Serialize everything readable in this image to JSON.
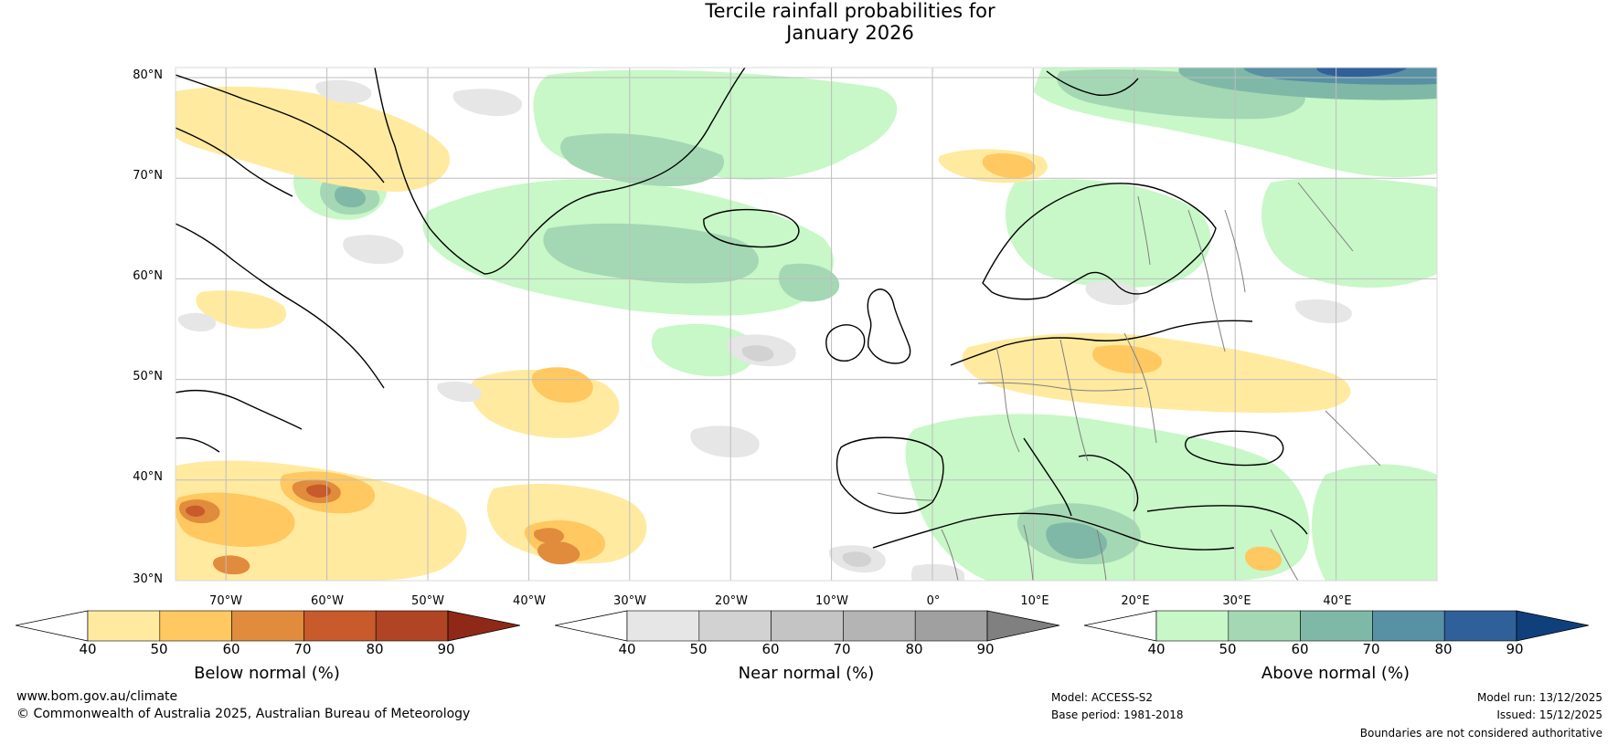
{
  "title": {
    "line1": "Tercile rainfall probabilities for",
    "line2": "January 2026"
  },
  "map": {
    "lat_labels": [
      "80°N",
      "70°N",
      "60°N",
      "50°N",
      "40°N",
      "30°N"
    ],
    "lon_labels": [
      "70°W",
      "60°W",
      "50°W",
      "40°W",
      "30°W",
      "20°W",
      "10°W",
      "0°",
      "10°E",
      "20°E",
      "30°E",
      "40°E"
    ],
    "extent": {
      "lon_min": -75,
      "lon_max": 50,
      "lat_min": 30,
      "lat_max": 81
    },
    "colors": {
      "land_outline": "#000000",
      "borders": "#808080",
      "gridlines": "#bdbdbd"
    }
  },
  "colorbars": [
    {
      "title": "Below normal (%)",
      "ticks": [
        "40",
        "50",
        "60",
        "70",
        "80",
        "90"
      ],
      "colors": [
        "#ffffff",
        "#ffeaa0",
        "#ffc860",
        "#e08c3c",
        "#c85a2c",
        "#b04424",
        "#902818"
      ]
    },
    {
      "title": "Near normal (%)",
      "ticks": [
        "40",
        "50",
        "60",
        "70",
        "80",
        "90"
      ],
      "colors": [
        "#ffffff",
        "#e6e6e6",
        "#d2d2d2",
        "#c4c4c4",
        "#b4b4b4",
        "#a0a0a0",
        "#808080"
      ]
    },
    {
      "title": "Above normal (%)",
      "ticks": [
        "40",
        "50",
        "60",
        "70",
        "80",
        "90"
      ],
      "colors": [
        "#ffffff",
        "#c8f7c8",
        "#a4d8b4",
        "#80b8a8",
        "#5890a4",
        "#30609a",
        "#10407c"
      ]
    }
  ],
  "footer": {
    "website": "www.bom.gov.au/climate",
    "copyright": "© Commonwealth of Australia 2025, Australian Bureau of Meteorology",
    "model": "Model: ACCESS-S2",
    "base_period": "Base period: 1981-2018",
    "model_run": "Model run: 13/12/2025",
    "issued": "Issued: 15/12/2025",
    "disclaimer": "Boundaries are not considered authoritative"
  }
}
